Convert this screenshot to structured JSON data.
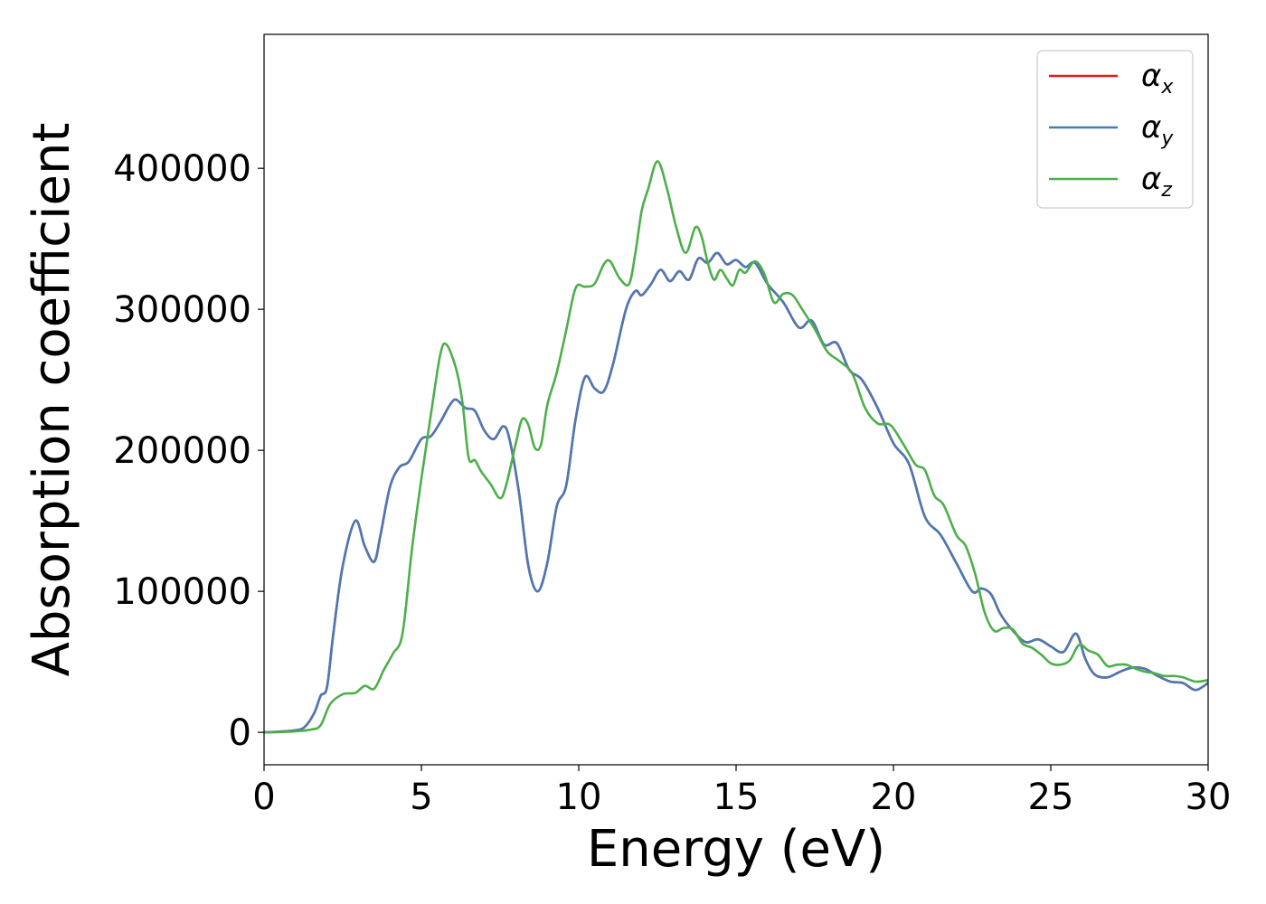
{
  "chart_data": {
    "type": "line",
    "xlabel": "Energy (eV)",
    "ylabel": "Absorption coefficient",
    "xlim": [
      0,
      30
    ],
    "ylim": [
      -23000,
      495000
    ],
    "xticks": [
      "0",
      "5",
      "10",
      "15",
      "20",
      "25",
      "30"
    ],
    "yticks": [
      "0",
      "100000",
      "200000",
      "300000",
      "400000"
    ],
    "grid": false,
    "legend_position": "top-right",
    "series": [
      {
        "name": "x",
        "legend_symbol": "α",
        "color": "#e41a1c",
        "x": [
          0,
          0.5,
          1,
          1.3,
          1.6,
          1.8,
          2.0,
          2.2,
          2.5,
          2.9,
          3.2,
          3.5,
          3.7,
          4.0,
          4.3,
          4.6,
          5.0,
          5.3,
          5.6,
          5.9,
          6.1,
          6.4,
          6.7,
          7.0,
          7.3,
          7.6,
          7.8,
          8.1,
          8.4,
          8.7,
          9.0,
          9.3,
          9.6,
          9.9,
          10.2,
          10.5,
          10.8,
          11.1,
          11.5,
          11.8,
          12.0,
          12.3,
          12.6,
          12.9,
          13.2,
          13.5,
          13.8,
          14.1,
          14.4,
          14.7,
          15.0,
          15.3,
          15.6,
          16.0,
          16.5,
          17.0,
          17.4,
          17.8,
          18.2,
          18.6,
          19.0,
          19.5,
          20.0,
          20.5,
          21.0,
          21.5,
          22.0,
          22.5,
          22.8,
          23.1,
          23.4,
          23.8,
          24.2,
          24.6,
          25.0,
          25.4,
          25.8,
          26.1,
          26.4,
          26.8,
          27.2,
          27.6,
          28.0,
          28.4,
          28.8,
          29.2,
          29.6,
          30.0
        ],
        "y": [
          0,
          500,
          1500,
          4000,
          14000,
          26000,
          32000,
          70000,
          118000,
          150000,
          132000,
          121000,
          140000,
          174000,
          188000,
          192000,
          208000,
          210000,
          220000,
          232000,
          236000,
          230000,
          228000,
          214000,
          208000,
          217000,
          208000,
          170000,
          118000,
          100000,
          120000,
          160000,
          175000,
          222000,
          252000,
          244000,
          242000,
          262000,
          300000,
          313000,
          310000,
          318000,
          328000,
          320000,
          327000,
          321000,
          336000,
          333000,
          340000,
          332000,
          335000,
          330000,
          333000,
          318000,
          305000,
          287000,
          292000,
          275000,
          276000,
          257000,
          250000,
          230000,
          205000,
          190000,
          153000,
          140000,
          120000,
          100000,
          102000,
          98000,
          84000,
          72000,
          64000,
          66000,
          61000,
          57000,
          70000,
          52000,
          41000,
          39000,
          43000,
          46000,
          45000,
          40000,
          36000,
          35000,
          30000,
          35000
        ]
      },
      {
        "name": "y",
        "legend_symbol": "α",
        "color": "#4a7ab5",
        "x": [
          0,
          0.5,
          1,
          1.3,
          1.6,
          1.8,
          2.0,
          2.2,
          2.5,
          2.9,
          3.2,
          3.5,
          3.7,
          4.0,
          4.3,
          4.6,
          5.0,
          5.3,
          5.6,
          5.9,
          6.1,
          6.4,
          6.7,
          7.0,
          7.3,
          7.6,
          7.8,
          8.1,
          8.4,
          8.7,
          9.0,
          9.3,
          9.6,
          9.9,
          10.2,
          10.5,
          10.8,
          11.1,
          11.5,
          11.8,
          12.0,
          12.3,
          12.6,
          12.9,
          13.2,
          13.5,
          13.8,
          14.1,
          14.4,
          14.7,
          15.0,
          15.3,
          15.6,
          16.0,
          16.5,
          17.0,
          17.4,
          17.8,
          18.2,
          18.6,
          19.0,
          19.5,
          20.0,
          20.5,
          21.0,
          21.5,
          22.0,
          22.5,
          22.8,
          23.1,
          23.4,
          23.8,
          24.2,
          24.6,
          25.0,
          25.4,
          25.8,
          26.1,
          26.4,
          26.8,
          27.2,
          27.6,
          28.0,
          28.4,
          28.8,
          29.2,
          29.6,
          30.0
        ],
        "y": [
          0,
          500,
          1500,
          4000,
          14000,
          26000,
          32000,
          70000,
          118000,
          150000,
          132000,
          121000,
          140000,
          174000,
          188000,
          192000,
          208000,
          210000,
          220000,
          232000,
          236000,
          230000,
          228000,
          214000,
          208000,
          217000,
          208000,
          170000,
          118000,
          100000,
          120000,
          160000,
          175000,
          222000,
          252000,
          244000,
          242000,
          262000,
          300000,
          313000,
          310000,
          318000,
          328000,
          320000,
          327000,
          321000,
          336000,
          333000,
          340000,
          332000,
          335000,
          330000,
          333000,
          318000,
          305000,
          287000,
          292000,
          275000,
          276000,
          257000,
          250000,
          230000,
          205000,
          190000,
          153000,
          140000,
          120000,
          100000,
          102000,
          98000,
          84000,
          72000,
          64000,
          66000,
          61000,
          57000,
          70000,
          52000,
          41000,
          39000,
          43000,
          46000,
          45000,
          40000,
          36000,
          35000,
          30000,
          35000
        ]
      },
      {
        "name": "z",
        "legend_symbol": "α",
        "color": "#4daf4a",
        "x": [
          0,
          0.5,
          1,
          1.5,
          1.8,
          2.1,
          2.5,
          2.9,
          3.2,
          3.5,
          3.8,
          4.1,
          4.4,
          4.7,
          5.0,
          5.3,
          5.6,
          5.8,
          6.1,
          6.3,
          6.5,
          6.7,
          6.9,
          7.2,
          7.5,
          7.7,
          8.0,
          8.2,
          8.4,
          8.6,
          8.8,
          9.0,
          9.3,
          9.6,
          9.9,
          10.2,
          10.5,
          10.8,
          11.0,
          11.3,
          11.6,
          11.8,
          12.0,
          12.2,
          12.5,
          12.8,
          13.1,
          13.4,
          13.7,
          13.9,
          14.1,
          14.3,
          14.5,
          14.7,
          14.9,
          15.1,
          15.3,
          15.6,
          15.9,
          16.2,
          16.5,
          16.8,
          17.1,
          17.5,
          17.9,
          18.3,
          18.7,
          19.1,
          19.5,
          19.9,
          20.3,
          20.7,
          21.0,
          21.3,
          21.6,
          22.0,
          22.3,
          22.6,
          22.9,
          23.2,
          23.5,
          23.8,
          24.1,
          24.4,
          24.7,
          25.0,
          25.3,
          25.6,
          25.9,
          26.2,
          26.5,
          26.8,
          27.1,
          27.4,
          27.7,
          28.0,
          28.3,
          28.6,
          28.9,
          29.2,
          29.6,
          30.0
        ],
        "y": [
          0,
          200,
          700,
          2000,
          5000,
          20000,
          27000,
          28000,
          33000,
          31000,
          44000,
          56000,
          70000,
          130000,
          180000,
          225000,
          268000,
          275000,
          258000,
          235000,
          195000,
          193000,
          185000,
          176000,
          166000,
          176000,
          205000,
          222000,
          218000,
          202000,
          204000,
          232000,
          255000,
          285000,
          315000,
          316000,
          318000,
          332000,
          334000,
          322000,
          318000,
          340000,
          370000,
          385000,
          405000,
          386000,
          358000,
          340000,
          358000,
          352000,
          333000,
          321000,
          328000,
          322000,
          317000,
          328000,
          326000,
          334000,
          325000,
          305000,
          311000,
          310000,
          300000,
          286000,
          270000,
          263000,
          254000,
          230000,
          219000,
          218000,
          205000,
          190000,
          186000,
          168000,
          161000,
          140000,
          132000,
          112000,
          85000,
          72000,
          74000,
          73000,
          63000,
          60000,
          55000,
          49000,
          48000,
          51000,
          62000,
          58000,
          55000,
          47000,
          48000,
          48000,
          45000,
          43000,
          42000,
          40000,
          40000,
          39000,
          36000,
          37000
        ]
      }
    ]
  }
}
